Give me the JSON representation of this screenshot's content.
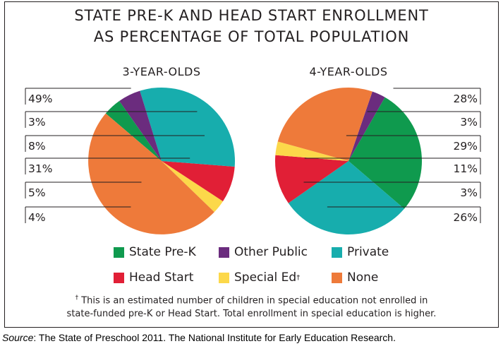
{
  "header": {
    "title_line1": "STATE PRE-K AND HEAD START ENROLLMENT",
    "title_line2": "AS PERCENTAGE OF TOTAL POPULATION"
  },
  "colors": {
    "State Pre-K": "#0f9a4e",
    "Other Public": "#6b2c7e",
    "Private": "#17adad",
    "Head Start": "#e11f36",
    "Special Ed": "#fcd84a",
    "None": "#ee7a3a"
  },
  "chart_data": [
    {
      "type": "pie",
      "title": "3-YEAR-OLDS",
      "slices": [
        {
          "category": "State Pre-K",
          "value": 4,
          "label": "4%"
        },
        {
          "category": "Other Public",
          "value": 5,
          "label": "5%"
        },
        {
          "category": "Private",
          "value": 31,
          "label": "31%"
        },
        {
          "category": "Head Start",
          "value": 8,
          "label": "8%"
        },
        {
          "category": "Special Ed",
          "value": 3,
          "label": "3%"
        },
        {
          "category": "None",
          "value": 49,
          "label": "49%"
        }
      ]
    },
    {
      "type": "pie",
      "title": "4-YEAR-OLDS",
      "slices": [
        {
          "category": "State Pre-K",
          "value": 28,
          "label": "28%"
        },
        {
          "category": "Other Public",
          "value": 3,
          "label": "3%"
        },
        {
          "category": "Private",
          "value": 29,
          "label": "29%"
        },
        {
          "category": "Head Start",
          "value": 11,
          "label": "11%"
        },
        {
          "category": "Special Ed",
          "value": 3,
          "label": "3%"
        },
        {
          "category": "None",
          "value": 26,
          "label": "26%"
        }
      ]
    }
  ],
  "legend": {
    "row1": [
      "State Pre-K",
      "Other Public",
      "Private"
    ],
    "row2": [
      "Head Start",
      "Special Ed",
      "None"
    ],
    "special_ed_marker": "†"
  },
  "footnote": {
    "marker": "†",
    "line1": " This is an estimated number of children in special education not enrolled in",
    "line2": "state-funded pre-K or Head Start. Total enrollment in special education is higher."
  },
  "source": {
    "label": "Source",
    "text": ": The State of Preschool 2011. The National Institute for Early Education Research."
  }
}
